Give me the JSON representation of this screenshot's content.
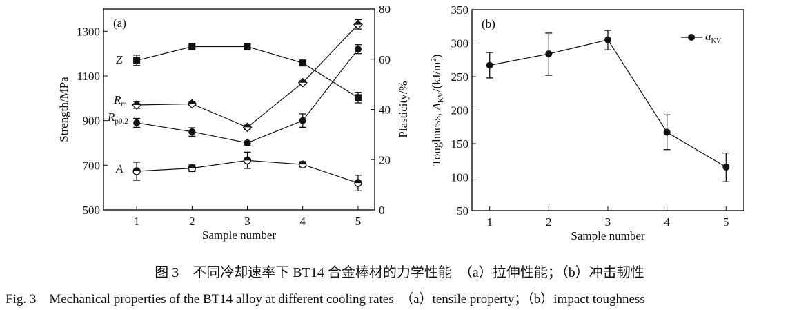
{
  "chart_data": [
    {
      "type": "line",
      "panel_label": "(a)",
      "xlabel": "Sample number",
      "ylabel_left": "Strength/MPa",
      "ylabel_right": "Plasticity/%",
      "categories": [
        1,
        2,
        3,
        4,
        5
      ],
      "xlim": [
        0.4,
        5.3
      ],
      "ylim_left": [
        500,
        1400
      ],
      "yticks_left": [
        500,
        700,
        900,
        1100,
        1300
      ],
      "ylim_right": [
        0,
        80
      ],
      "yticks_right": [
        0,
        20,
        40,
        60,
        80
      ],
      "grid": false,
      "series": [
        {
          "name": "Z",
          "axis": "right",
          "marker": "filled-square",
          "values": [
            59.5,
            65,
            65,
            58.5,
            44.7
          ],
          "err_low": [
            57.5,
            63.8,
            65,
            57.9,
            42.6
          ],
          "err_high": [
            61.6,
            66.3,
            65,
            59.1,
            46.8
          ]
        },
        {
          "name": "Rm",
          "label_main": "R",
          "label_sub": "m",
          "axis": "left",
          "marker": "half-open-diamond",
          "values": [
            970,
            975,
            870,
            1070,
            1330
          ],
          "err_low": [
            955,
            967,
            860,
            1062,
            1310
          ],
          "err_high": [
            985,
            983,
            880,
            1078,
            1352
          ]
        },
        {
          "name": "Rp0.2",
          "label_main": "R",
          "label_sub": "p0.2",
          "axis": "left",
          "marker": "filled-circle",
          "values": [
            890,
            850,
            800,
            900,
            1220
          ],
          "err_low": [
            870,
            830,
            790,
            870,
            1200
          ],
          "err_high": [
            910,
            868,
            808,
            930,
            1240
          ]
        },
        {
          "name": "A",
          "axis": "right",
          "marker": "half-open-circle",
          "values": [
            15.4,
            16.6,
            19.7,
            18.1,
            10.7
          ],
          "err_low": [
            11.8,
            15.3,
            16.5,
            17.1,
            7.6
          ],
          "err_high": [
            19,
            17.9,
            23,
            19.2,
            13.8
          ]
        }
      ]
    },
    {
      "type": "line",
      "panel_label": "(b)",
      "xlabel": "Sample number",
      "ylabel": "Toughness, A_KV/(kJ/m²)",
      "ylabel_parts": {
        "pre": "Toughness, ",
        "main": "A",
        "sub": "KV",
        "post": "/(kJ/m",
        "sup": "2",
        "end": ")"
      },
      "categories": [
        1,
        2,
        3,
        4,
        5
      ],
      "xlim": [
        0.7,
        5.3
      ],
      "ylim": [
        50,
        350
      ],
      "yticks": [
        50,
        100,
        150,
        200,
        250,
        300,
        350
      ],
      "grid": false,
      "legend": {
        "position": "top-right",
        "main": "a",
        "sub": "KV"
      },
      "series": [
        {
          "name": "aKV",
          "marker": "filled-circle",
          "values": [
            267,
            284,
            305,
            167,
            115
          ],
          "err_low": [
            248,
            252,
            290,
            141,
            93
          ],
          "err_high": [
            286,
            315,
            319,
            193,
            136
          ]
        }
      ]
    }
  ],
  "caption": {
    "cn": "图 3　不同冷却速率下 BT14 合金棒材的力学性能　（a）拉伸性能；（b）冲击韧性",
    "en": "Fig. 3　Mechanical properties of the BT14 alloy at different cooling rates　（a）tensile property；（b）impact toughness"
  }
}
